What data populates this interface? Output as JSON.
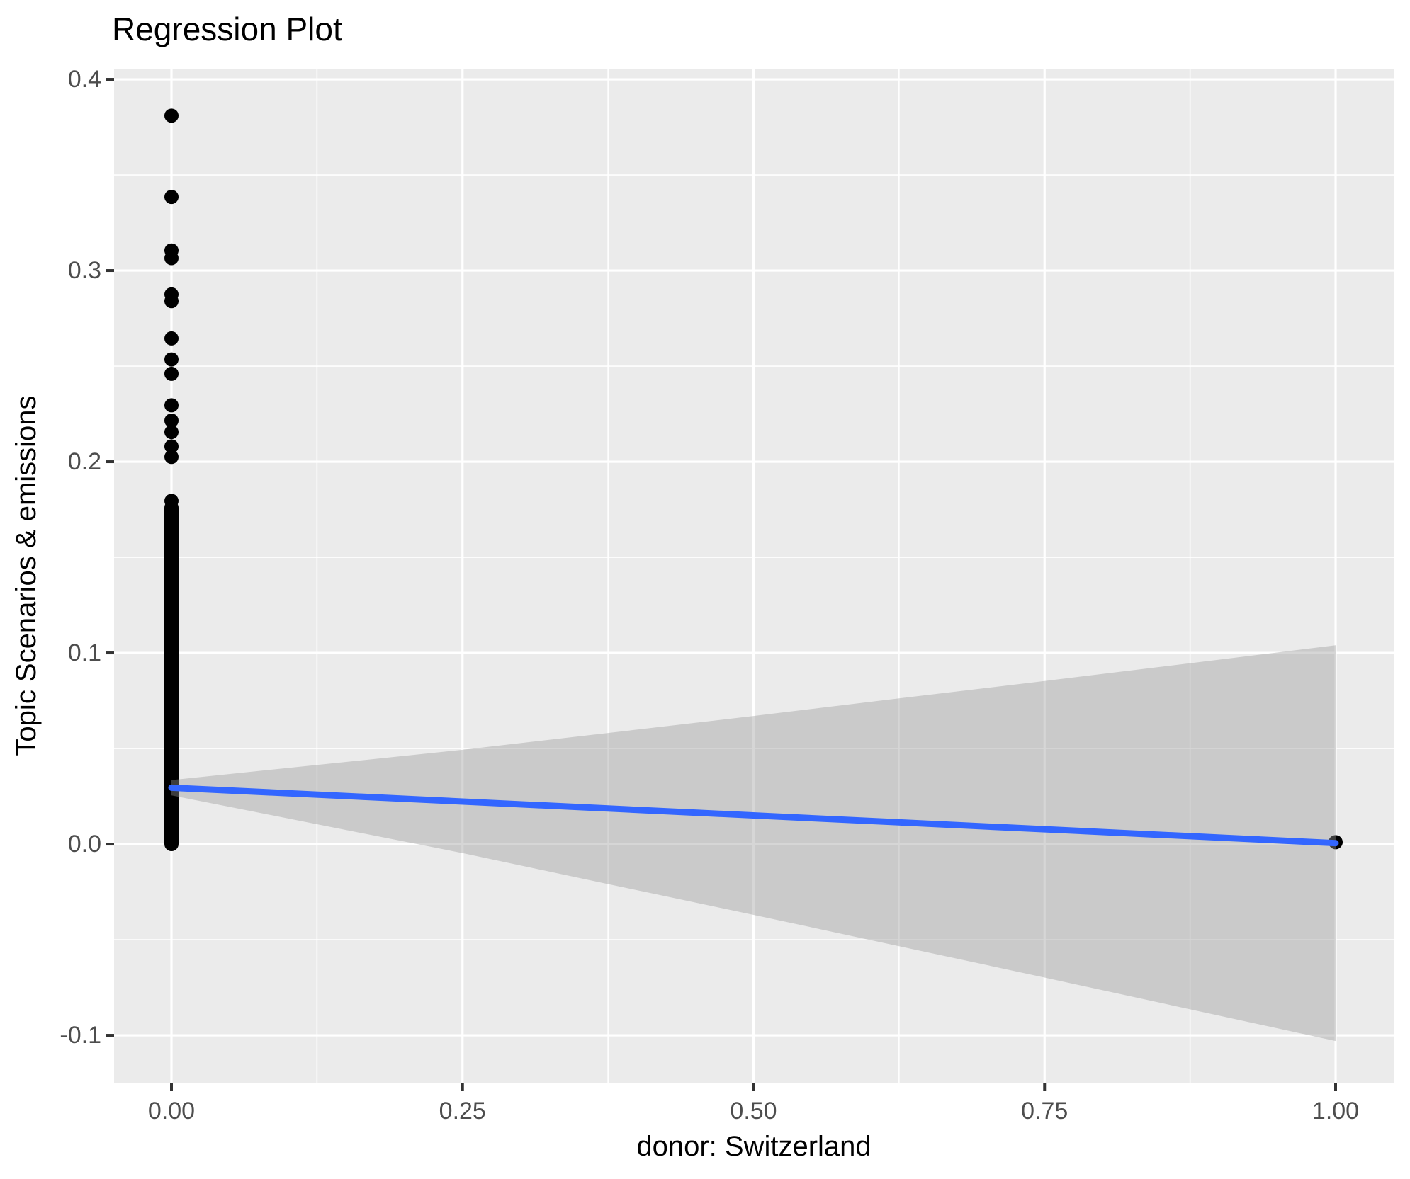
{
  "title": "Regression Plot",
  "x_axis_title": "donor: Switzerland",
  "y_axis_title": "Topic Scenarios & emissions",
  "chart_data": {
    "type": "scatter",
    "title": "Regression Plot",
    "xlabel": "donor: Switzerland",
    "ylabel": "Topic Scenarios & emissions",
    "x_domain": [
      -0.0493,
      1.0499
    ],
    "y_domain": [
      -0.1248,
      0.4052
    ],
    "xlim_data": [
      0,
      1
    ],
    "ylim_data": [
      -0.105,
      0.382
    ],
    "grid": true,
    "legend": false,
    "x_ticks": {
      "values": [
        0,
        0.25,
        0.5,
        0.75,
        1
      ],
      "labels": [
        "0.00",
        "0.25",
        "0.50",
        "0.75",
        "1.00"
      ],
      "minor": [
        0.125,
        0.375,
        0.625,
        0.875
      ]
    },
    "y_ticks": {
      "values": [
        0.4,
        0.3,
        0.2,
        0.1,
        0.0,
        -0.1
      ],
      "labels": [
        "0.4",
        "0.3",
        "0.2",
        "0.1",
        "0.0",
        "-0.1"
      ],
      "minor": [
        0.35,
        0.25,
        0.15,
        0.05,
        -0.05
      ]
    },
    "series": [
      {
        "name": "observations-x0-outliers",
        "type": "points",
        "color": "#000000",
        "radius": 10,
        "x": [
          0,
          0,
          0,
          0,
          0,
          0,
          0,
          0,
          0,
          0,
          0,
          0,
          0,
          0,
          0
        ],
        "y": [
          0.381,
          0.3385,
          0.3105,
          0.3065,
          0.2875,
          0.284,
          0.2645,
          0.2535,
          0.246,
          0.2295,
          0.2215,
          0.2155,
          0.208,
          0.2025,
          0.1795
        ]
      },
      {
        "name": "observations-x0-dense-column",
        "type": "dense-column",
        "color": "#000000",
        "radius": 10,
        "x": 0,
        "y_min": 0.0,
        "y_max": 0.176,
        "note": "many overlapping points forming a solid vertical band"
      },
      {
        "name": "observation-x1",
        "type": "points",
        "color": "#000000",
        "radius": 10,
        "x": [
          1
        ],
        "y": [
          0.001
        ]
      },
      {
        "name": "confidence-band",
        "type": "band",
        "color": "#999999",
        "opacity": 0.4,
        "x": [
          0,
          0.125,
          0.25,
          0.375,
          0.5,
          0.625,
          0.75,
          0.875,
          1
        ],
        "upper": [
          0.0335,
          0.0414,
          0.0493,
          0.0581,
          0.067,
          0.0762,
          0.0853,
          0.0946,
          0.104
        ],
        "lower": [
          0.0255,
          0.0104,
          -0.0047,
          -0.0209,
          -0.037,
          -0.0534,
          -0.0698,
          -0.0864,
          -0.103
        ]
      },
      {
        "name": "regression-line",
        "type": "line",
        "color": "#3366FF",
        "width": 9,
        "x": [
          0,
          1
        ],
        "y": [
          0.0295,
          0.0005
        ]
      }
    ]
  },
  "style": {
    "panel_bg": "#EBEBEB",
    "grid_color": "#FFFFFF",
    "tick_mark_color": "#333333",
    "tick_label_color": "#4D4D4D",
    "title_color": "#000000",
    "point_color": "#000000",
    "line_color": "#3366FF",
    "band_color": "#999999"
  }
}
